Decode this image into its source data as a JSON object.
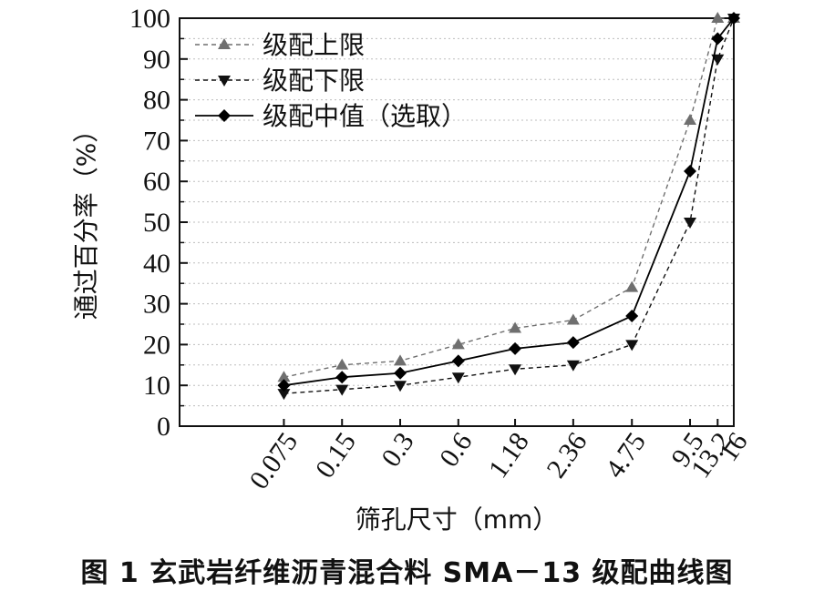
{
  "caption": "图 1   玄武岩纤维沥青混合料 SMA－13 级配曲线图",
  "chart_data": {
    "type": "line",
    "title": "",
    "xlabel": "筛孔尺寸（mm）",
    "ylabel": "通过百分率（%）",
    "x_scale": "log",
    "categories": [
      "0.075",
      "0.15",
      "0.3",
      "0.6",
      "1.18",
      "2.36",
      "4.75",
      "9.5",
      "13.2",
      "16"
    ],
    "x": [
      0.075,
      0.15,
      0.3,
      0.6,
      1.18,
      2.36,
      4.75,
      9.5,
      13.2,
      16
    ],
    "ylim": [
      0,
      100
    ],
    "yticks": [
      0,
      10,
      20,
      30,
      40,
      50,
      60,
      70,
      80,
      90,
      100
    ],
    "grid": "horizontal dotted",
    "legend_position": "top-left",
    "series": [
      {
        "name": "级配上限",
        "values": [
          12,
          15,
          16,
          20,
          24,
          26,
          34,
          75,
          100,
          100
        ],
        "color": "#6f6f6f",
        "line_style": "dashed",
        "marker": "triangle-up"
      },
      {
        "name": "级配下限",
        "values": [
          8,
          9,
          10,
          12,
          14,
          15,
          20,
          50,
          90,
          100
        ],
        "color": "#111111",
        "line_style": "dashed",
        "marker": "triangle-down"
      },
      {
        "name": "级配中值（选取）",
        "values": [
          10,
          12,
          13,
          16,
          19,
          20.5,
          27,
          62.5,
          95,
          100
        ],
        "color": "#000000",
        "line_style": "solid",
        "marker": "diamond"
      }
    ]
  }
}
